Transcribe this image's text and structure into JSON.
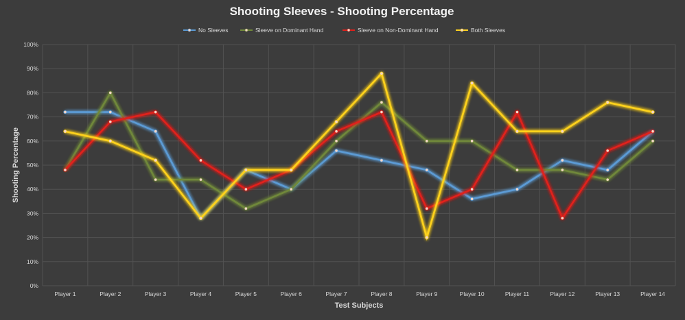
{
  "chart_data": {
    "type": "line",
    "title": "Shooting Sleeves - Shooting Percentage",
    "xlabel": "Test Subjects",
    "ylabel": "Shooting Percentage",
    "ylim": [
      0,
      100
    ],
    "y_ticks": [
      "0%",
      "10%",
      "20%",
      "30%",
      "40%",
      "50%",
      "60%",
      "70%",
      "80%",
      "90%",
      "100%"
    ],
    "grid": true,
    "legend_position": "top",
    "categories": [
      "Player 1",
      "Player 2",
      "Player 3",
      "Player 4",
      "Player 5",
      "Player 6",
      "Player 7",
      "Player 8",
      "Player 9",
      "Player 10",
      "Player 11",
      "Player 12",
      "Player 13",
      "Player 14"
    ],
    "series": [
      {
        "name": "No Sleeves",
        "color": "#5b9bd5",
        "values": [
          72,
          72,
          64,
          28,
          48,
          40,
          56,
          52,
          48,
          36,
          40,
          52,
          48,
          64
        ]
      },
      {
        "name": "Sleeve on Dominant Hand",
        "color": "#70883a",
        "values": [
          48,
          80,
          44,
          44,
          32,
          40,
          60,
          76,
          60,
          60,
          48,
          48,
          44,
          60
        ]
      },
      {
        "name": "Sleeve on Non-Dominant Hand",
        "color": "#e0201b",
        "values": [
          48,
          68,
          72,
          52,
          40,
          48,
          64,
          72,
          32,
          40,
          72,
          28,
          56,
          64
        ]
      },
      {
        "name": "Both Sleeves",
        "color": "#ffd21f",
        "values": [
          64,
          60,
          52,
          28,
          48,
          48,
          68,
          88,
          20,
          84,
          64,
          64,
          76,
          72
        ]
      }
    ]
  }
}
